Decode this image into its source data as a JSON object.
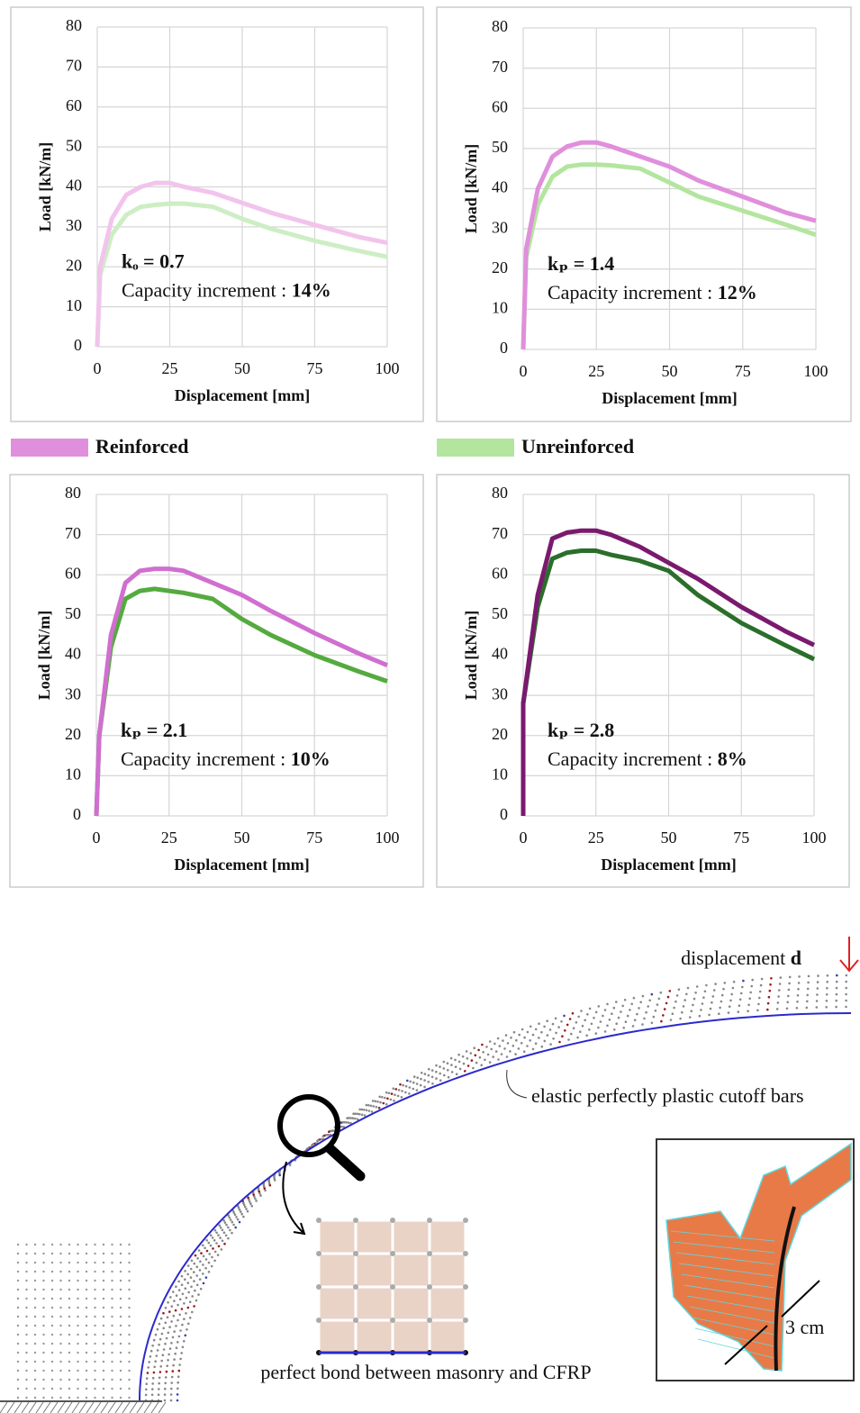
{
  "chart_data": [
    {
      "type": "line",
      "xlabel": "Displacement [mm]",
      "ylabel": "Load [kN/m]",
      "x": [
        0,
        1,
        5,
        10,
        15,
        20,
        25,
        30,
        40,
        50,
        60,
        75,
        90,
        100
      ],
      "series": [
        {
          "color": "#f2c4ec",
          "values": [
            0,
            20,
            32,
            38,
            40,
            41,
            41,
            40,
            38.5,
            36,
            33.5,
            30.5,
            27.5,
            26
          ]
        },
        {
          "color": "#cdeec4",
          "values": [
            0,
            18,
            28,
            33,
            35,
            35.5,
            35.8,
            35.8,
            35,
            32,
            29.5,
            26.5,
            24,
            22.5
          ]
        }
      ],
      "xlim": [
        0,
        100
      ],
      "ylim": [
        0,
        80
      ],
      "xticks": [
        0,
        25,
        50,
        75,
        100
      ],
      "yticks": [
        0,
        10,
        20,
        30,
        40,
        50,
        60,
        70,
        80
      ],
      "grid": true,
      "annotation": {
        "k": "kₒ = 0.7",
        "label": "Capacity increment : ",
        "value": "14%"
      }
    },
    {
      "type": "line",
      "xlabel": "Displacement [mm]",
      "ylabel": "Load [kN/m]",
      "x": [
        0,
        1,
        5,
        10,
        15,
        20,
        25,
        30,
        40,
        50,
        60,
        75,
        90,
        100
      ],
      "series": [
        {
          "color": "#e08fdc",
          "values": [
            0,
            25,
            40,
            48,
            50.5,
            51.5,
            51.5,
            50.5,
            48,
            45.5,
            42,
            38,
            34,
            32
          ]
        },
        {
          "color": "#b3e59f",
          "values": [
            0,
            23,
            36,
            43,
            45.5,
            46,
            46,
            45.8,
            45,
            41.5,
            38,
            34.5,
            31,
            28.5
          ]
        }
      ],
      "xlim": [
        0,
        100
      ],
      "ylim": [
        0,
        80
      ],
      "xticks": [
        0,
        25,
        50,
        75,
        100
      ],
      "yticks": [
        0,
        10,
        20,
        30,
        40,
        50,
        60,
        70,
        80
      ],
      "grid": true,
      "annotation": {
        "k": "kₚ = 1.4",
        "label": "Capacity increment : ",
        "value": "12%"
      }
    },
    {
      "type": "line",
      "xlabel": "Displacement [mm]",
      "ylabel": "Load [kN/m]",
      "x": [
        0,
        1,
        5,
        10,
        15,
        20,
        25,
        30,
        40,
        50,
        60,
        75,
        90,
        100
      ],
      "series": [
        {
          "color": "#d06fd0",
          "values": [
            0,
            20,
            45,
            58,
            61,
            61.5,
            61.5,
            61,
            58,
            55,
            51,
            45.5,
            40.5,
            37.5
          ]
        },
        {
          "color": "#55aa3f",
          "values": [
            0,
            20,
            42,
            54,
            56,
            56.5,
            56,
            55.5,
            54,
            49,
            45,
            40,
            36,
            33.5
          ]
        }
      ],
      "xlim": [
        0,
        100
      ],
      "ylim": [
        0,
        80
      ],
      "xticks": [
        0,
        25,
        50,
        75,
        100
      ],
      "yticks": [
        0,
        10,
        20,
        30,
        40,
        50,
        60,
        70,
        80
      ],
      "grid": true,
      "annotation": {
        "k": "kₚ = 2.1",
        "label": "Capacity increment : ",
        "value": "10%"
      }
    },
    {
      "type": "line",
      "xlabel": "Displacement [mm]",
      "ylabel": "Load [kN/m]",
      "x": [
        0,
        0,
        5,
        10,
        15,
        20,
        25,
        30,
        40,
        50,
        60,
        75,
        90,
        100
      ],
      "series": [
        {
          "color": "#7a1a6e",
          "values": [
            0,
            28,
            55,
            69,
            70.5,
            71,
            71,
            70,
            67,
            63,
            59,
            52,
            46,
            42.5
          ]
        },
        {
          "color": "#2a6e2a",
          "values": [
            0,
            28,
            52,
            64,
            65.5,
            66,
            66,
            65,
            63.5,
            61,
            55,
            48,
            42.5,
            39
          ]
        }
      ],
      "xlim": [
        0,
        100
      ],
      "ylim": [
        0,
        80
      ],
      "xticks": [
        0,
        25,
        50,
        75,
        100
      ],
      "yticks": [
        0,
        10,
        20,
        30,
        40,
        50,
        60,
        70,
        80
      ],
      "grid": true,
      "annotation": {
        "k": "kₚ = 2.8",
        "label": "Capacity increment : ",
        "value": "8%"
      }
    }
  ],
  "legend": [
    {
      "name": "Reinforced",
      "color": "#e08fdc"
    },
    {
      "name": "Unreinforced",
      "color": "#b3e59f"
    }
  ],
  "diagram": {
    "load_label": "displacement ",
    "load_symbol": "d",
    "bars_label": "elastic perfectly plastic cutoff bars",
    "bond_label": "perfect bond between masonry and CFRP",
    "thickness_label": "3 cm"
  }
}
